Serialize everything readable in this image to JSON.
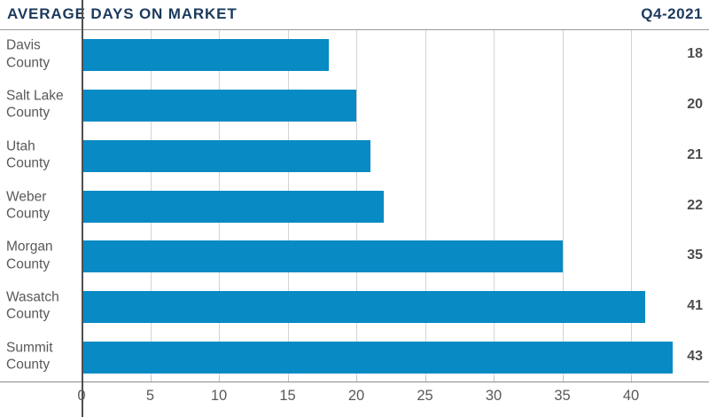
{
  "header": {
    "title": "AVERAGE DAYS ON MARKET",
    "period": "Q4-2021"
  },
  "chart_data": {
    "type": "bar",
    "orientation": "horizontal",
    "title": "AVERAGE DAYS ON MARKET",
    "subtitle": "Q4-2021",
    "categories": [
      "Davis County",
      "Salt Lake County",
      "Utah County",
      "Weber County",
      "Morgan County",
      "Wasatch County",
      "Summit County"
    ],
    "values": [
      18,
      20,
      21,
      22,
      35,
      41,
      43
    ],
    "value_labels": [
      "18",
      "20",
      "21",
      "22",
      "35",
      "41",
      "43"
    ],
    "x_ticks": [
      0,
      5,
      10,
      15,
      20,
      25,
      30,
      35,
      40
    ],
    "xlim": [
      0,
      45.7
    ],
    "grid": true,
    "legend": "none",
    "xlabel": "",
    "ylabel": ""
  },
  "colors": {
    "title": "#1b3a5d",
    "bar": "#088ac4",
    "category_label": "#58595b",
    "value_label": "#4d4d4f",
    "gridline": "#d3d3d3",
    "axis_line": "#8b8b8b",
    "y_axis_line": "#4f4f51"
  }
}
